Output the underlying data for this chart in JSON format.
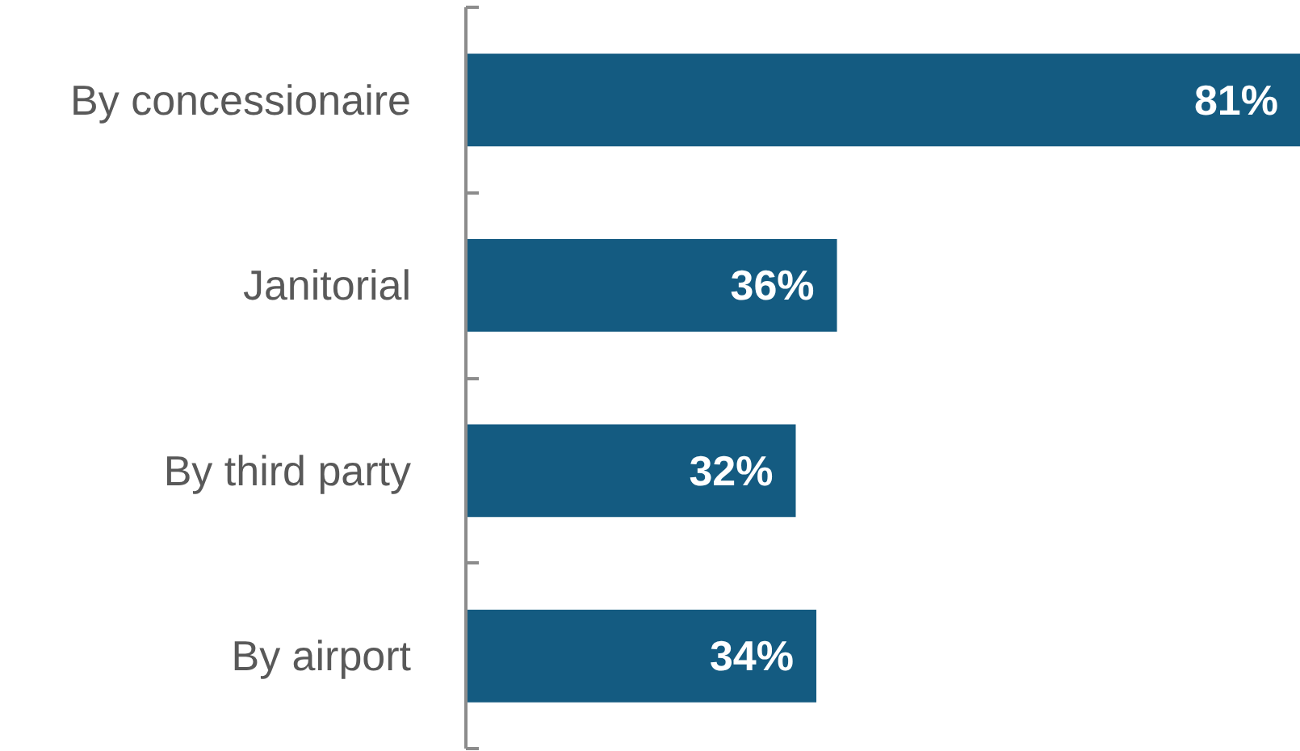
{
  "chart_data": {
    "type": "bar",
    "orientation": "horizontal",
    "categories": [
      "By concessionaire",
      "Janitorial",
      "By third party",
      "By airport"
    ],
    "values": [
      81,
      36,
      32,
      34
    ],
    "value_labels": [
      "81%",
      "36%",
      "32%",
      "34%"
    ],
    "color": "#145b81",
    "grid": false
  }
}
